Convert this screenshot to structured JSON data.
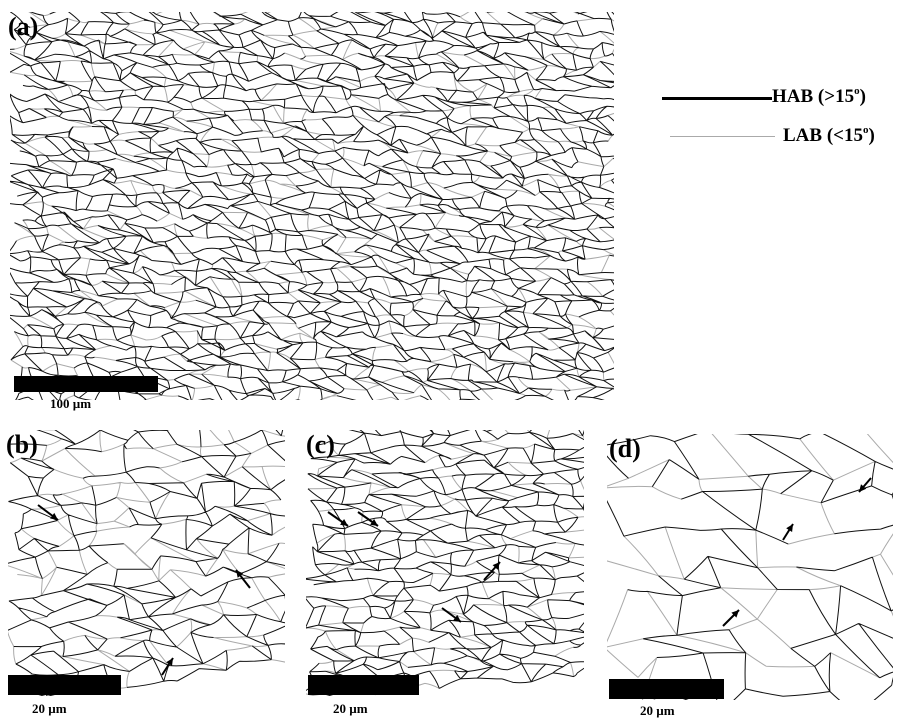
{
  "panels": {
    "a": {
      "label": "(a)",
      "scale": "100 µm"
    },
    "b": {
      "label": "(b)",
      "scale": "20 µm"
    },
    "c": {
      "label": "(c)",
      "scale": "20 µm"
    },
    "d": {
      "label": "(d)",
      "scale": "20 µm"
    }
  },
  "legend": {
    "hab_label": "HAB (>15",
    "hab_sup": "o",
    "hab_close": ")",
    "hab_color": "#000000",
    "lab_label": "LAB (<15",
    "lab_sup": "o",
    "lab_close": ")",
    "lab_color": "#aaaaaa"
  }
}
